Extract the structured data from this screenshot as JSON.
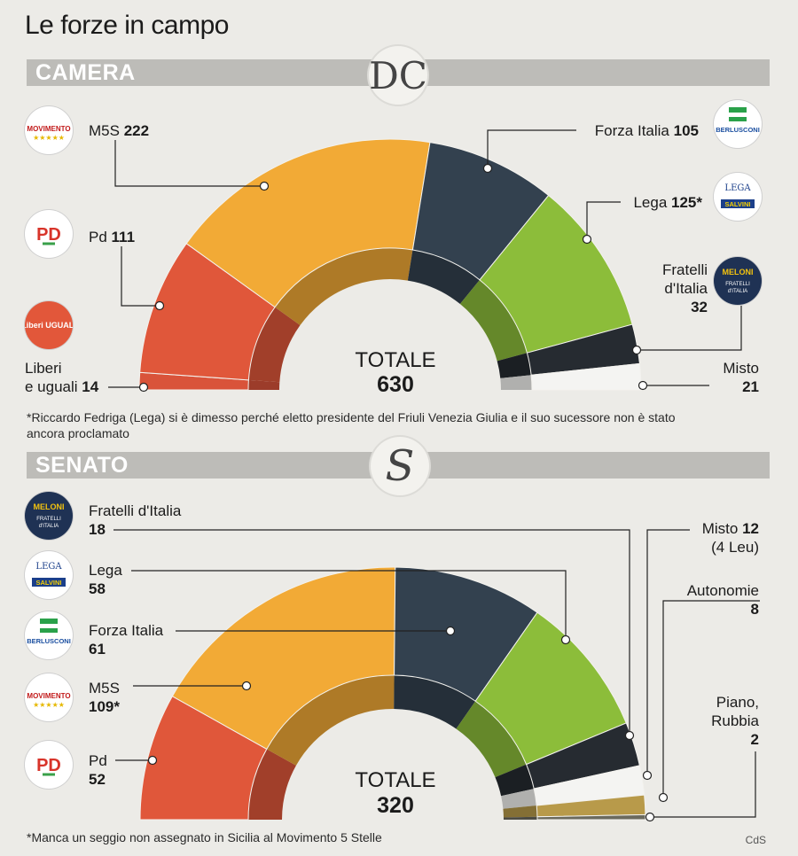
{
  "title": "Le forze in campo",
  "credit": "CdS",
  "camera": {
    "band_label": "CAMERA",
    "emblem": "DC",
    "total_label": "TOTALE",
    "total": "630",
    "note": "Riccardo Fedriga (Lega) si è dimesso perché eletto presidente del Friuli Venezia Giulia e il suo sucessore non è stato ancora proclamato",
    "labels": {
      "m5s": {
        "name": "M5S",
        "value": "222"
      },
      "pd": {
        "name": "Pd",
        "value": "111"
      },
      "leu": {
        "name1": "Liberi",
        "name2": "e uguali",
        "value": "14"
      },
      "fi": {
        "name": "Forza Italia",
        "value": "105"
      },
      "lega": {
        "name": "Lega",
        "value": "125*"
      },
      "fdi": {
        "name1": "Fratelli",
        "name2": "d'Italia",
        "value": "32"
      },
      "misto": {
        "name": "Misto",
        "value": "21"
      }
    },
    "logos": {
      "m5s": "MOVIMENTO",
      "pd": "PD",
      "leu": "Liberi UGUALI",
      "fi": "BERLUSCONI",
      "lega": "SALVINI",
      "fdi": "MELONI"
    }
  },
  "senato": {
    "band_label": "SENATO",
    "emblem": "S",
    "total_label": "TOTALE",
    "total": "320",
    "note": "Manca un seggio non assegnato in Sicilia al Movimento 5 Stelle",
    "labels": {
      "fdi": {
        "name": "Fratelli d'Italia",
        "value": "18"
      },
      "lega": {
        "name": "Lega",
        "value": "58"
      },
      "fi": {
        "name": "Forza Italia",
        "value": "61"
      },
      "m5s": {
        "name": "M5S",
        "value": "109*"
      },
      "pd": {
        "name": "Pd",
        "value": "52"
      },
      "misto": {
        "name": "Misto",
        "value": "12",
        "sub": "(4 Leu)"
      },
      "aut": {
        "name": "Autonomie",
        "value": "8"
      },
      "pr": {
        "name1": "Piano,",
        "name2": "Rubbia",
        "value": "2"
      }
    },
    "logos": {
      "fdi": "MELONI",
      "lega": "SALVINI",
      "fi": "BERLUSCONI",
      "m5s": "MOVIMENTO",
      "pd": "PD"
    }
  },
  "chart_data": [
    {
      "type": "pie",
      "subtype": "parliament-semicircle",
      "title": "CAMERA",
      "total": 630,
      "series": [
        {
          "name": "Liberi e uguali",
          "value": 14,
          "color": "#d9533a"
        },
        {
          "name": "Pd",
          "value": 111,
          "color": "#e0573a"
        },
        {
          "name": "M5S",
          "value": 222,
          "color": "#f2aa36"
        },
        {
          "name": "Forza Italia",
          "value": 105,
          "color": "#33414f"
        },
        {
          "name": "Lega",
          "value": 125,
          "color": "#8cbd3a"
        },
        {
          "name": "Fratelli d'Italia",
          "value": 32,
          "color": "#262b31"
        },
        {
          "name": "Misto",
          "value": 21,
          "color": "#f4f4f2"
        }
      ]
    },
    {
      "type": "pie",
      "subtype": "parliament-semicircle",
      "title": "SENATO",
      "total": 320,
      "series": [
        {
          "name": "Pd",
          "value": 52,
          "color": "#e0573a"
        },
        {
          "name": "M5S",
          "value": 109,
          "color": "#f2aa36"
        },
        {
          "name": "Forza Italia",
          "value": 61,
          "color": "#33414f"
        },
        {
          "name": "Lega",
          "value": 58,
          "color": "#8cbd3a"
        },
        {
          "name": "Fratelli d'Italia",
          "value": 18,
          "color": "#262b31"
        },
        {
          "name": "Misto",
          "value": 12,
          "color": "#f4f4f2"
        },
        {
          "name": "Autonomie",
          "value": 8,
          "color": "#b89a4a"
        },
        {
          "name": "Piano, Rubbia",
          "value": 2,
          "color": "#6b6a5e"
        }
      ]
    }
  ]
}
